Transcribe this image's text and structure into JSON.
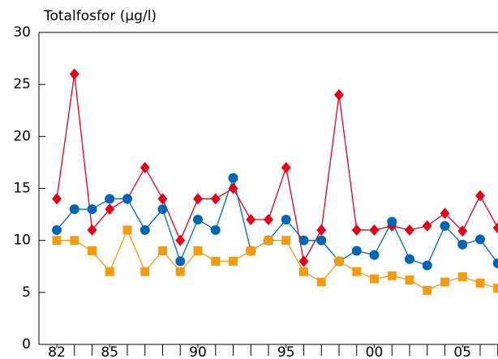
{
  "chart_data": {
    "type": "line",
    "title": "Totalfosfor (µg/l)",
    "categories": [
      "82",
      null,
      null,
      "85",
      null,
      null,
      null,
      null,
      "90",
      null,
      null,
      null,
      null,
      "95",
      null,
      null,
      null,
      null,
      "00",
      null,
      null,
      null,
      null,
      "05",
      null,
      null
    ],
    "series": [
      {
        "name": "red",
        "color": "#e2001a",
        "marker": "diamond",
        "values": [
          14,
          26,
          11,
          13,
          14,
          17,
          14,
          10,
          14,
          14,
          15,
          12,
          12,
          17,
          8,
          11,
          24,
          11,
          11,
          11.4,
          11,
          11.4,
          12.6,
          10.9,
          14.3,
          11.2
        ]
      },
      {
        "name": "blue",
        "color": "#0066b3",
        "marker": "circle",
        "values": [
          11,
          13,
          13,
          14,
          14,
          11,
          13,
          8,
          12,
          11,
          16,
          9,
          10,
          12,
          10,
          10,
          8,
          9,
          8.6,
          11.8,
          8.2,
          7.6,
          11.4,
          9.6,
          10.1,
          7.8
        ]
      },
      {
        "name": "orange",
        "color": "#f39c12",
        "marker": "square",
        "values": [
          10,
          10,
          9,
          7,
          11,
          7,
          9,
          7,
          9,
          8,
          8,
          9,
          10,
          10,
          7,
          6,
          8,
          7,
          6.3,
          6.6,
          6.2,
          5.2,
          6,
          6.5,
          5.9,
          5.4
        ]
      }
    ],
    "ylim": [
      0,
      30
    ],
    "yticks": [
      0,
      5,
      10,
      15,
      20,
      25,
      30
    ],
    "grid": false
  }
}
